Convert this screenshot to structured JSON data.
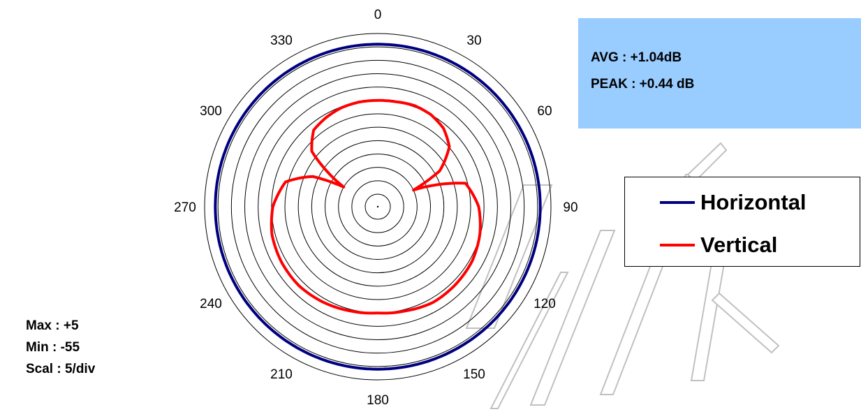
{
  "chart_data": {
    "type": "polar-line",
    "angle_labels": [
      "0",
      "30",
      "60",
      "90",
      "120",
      "150",
      "180",
      "210",
      "240",
      "270",
      "300",
      "330"
    ],
    "r_range": [
      -55,
      5
    ],
    "r_step": 5,
    "series": [
      {
        "name": "Horizontal",
        "color": "#000080",
        "angles": [
          0,
          30,
          60,
          90,
          120,
          150,
          180,
          210,
          240,
          270,
          300,
          330,
          360
        ],
        "values": [
          1.0,
          1.0,
          1.0,
          1.0,
          1.0,
          1.0,
          1.0,
          1.0,
          1.0,
          1.0,
          1.0,
          1.0,
          1.0
        ]
      },
      {
        "name": "Vertical",
        "color": "#ff0000",
        "angles": [
          0,
          10,
          20,
          30,
          40,
          50,
          60,
          65,
          75,
          90,
          105,
          120,
          135,
          150,
          165,
          180,
          195,
          210,
          225,
          240,
          255,
          270,
          285,
          295,
          300,
          310,
          320,
          330,
          340,
          350,
          360
        ],
        "values": [
          -20,
          -19.9,
          -19.5,
          -20.0,
          -21.5,
          -24.8,
          -33,
          -45,
          -25.8,
          -22.0,
          -20.2,
          -19.0,
          -18.6,
          -18.4,
          -19.4,
          -20.0,
          -19.4,
          -18.6,
          -18.0,
          -18.2,
          -18.8,
          -20.5,
          -24.0,
          -33,
          -45,
          -27.5,
          -22.4,
          -21.2,
          -20.3,
          -20.0,
          -20
        ]
      }
    ]
  },
  "info": {
    "avg": "AVG : +1.04dB",
    "peak": "PEAK : +0.44 dB"
  },
  "legend": {
    "horizontal": "Horizontal",
    "vertical": "Vertical"
  },
  "specs": {
    "max": "Max : +5",
    "min": "Min : -55",
    "scale": "Scal : 5/div"
  },
  "colors": {
    "info_box": "#99ccff",
    "horizontal": "#000080",
    "vertical": "#ff0000",
    "watermark": "#ffffff"
  }
}
